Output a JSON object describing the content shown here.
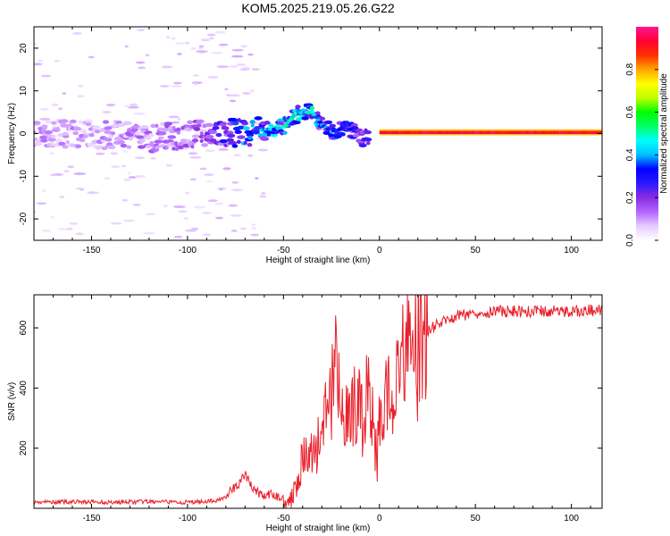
{
  "title": "KOM5.2025.219.05.26.G22",
  "colorbar": {
    "label": "Normalized spectral amplitude",
    "ticks": [
      "0.0",
      "0.2",
      "0.4",
      "0.6",
      "0.8"
    ],
    "tick_values": [
      0.0,
      0.2,
      0.4,
      0.6,
      0.8
    ],
    "range": [
      0,
      1
    ],
    "colormap": [
      "#ffffff",
      "#e6ccff",
      "#b266ff",
      "#8a2be2",
      "#2a1aff",
      "#0000ff",
      "#00bfff",
      "#00ffff",
      "#00ff66",
      "#00ff00",
      "#bfff00",
      "#ffff00",
      "#ffa500",
      "#ff3000",
      "#ff0033",
      "#ff1493"
    ]
  },
  "chart_data": [
    {
      "type": "heatmap",
      "name": "spectrogram",
      "xlabel": "Height of straight line (km)",
      "ylabel": "Frequency (Hz)",
      "xlim": [
        -180,
        116
      ],
      "ylim": [
        -25,
        25
      ],
      "x_ticks": [
        -150,
        -100,
        -50,
        0,
        50,
        100
      ],
      "x_tick_labels": [
        "-150",
        "-100",
        "-50",
        "0",
        "50",
        "100"
      ],
      "y_ticks": [
        -20,
        -10,
        0,
        10,
        20
      ],
      "y_tick_labels": [
        "-20",
        "-10",
        "0",
        "10",
        "20"
      ],
      "ridge": {
        "x": [
          -180,
          -150,
          -120,
          -100,
          -90,
          -80,
          -70,
          -60,
          -55,
          -50,
          -45,
          -40,
          -35,
          -30,
          -25,
          -20,
          -15,
          -10,
          -5,
          0,
          20,
          40,
          60,
          80,
          100,
          116
        ],
        "freq": [
          0,
          0,
          -1,
          -0.5,
          0,
          0,
          0.3,
          1,
          1,
          1.5,
          4,
          5,
          5,
          2,
          0.5,
          1,
          1,
          -1,
          -1,
          0.5,
          0.5,
          0,
          0,
          0,
          0,
          0
        ],
        "amplitude": [
          0.12,
          0.12,
          0.15,
          0.18,
          0.2,
          0.3,
          0.4,
          0.45,
          0.45,
          0.5,
          0.55,
          0.5,
          0.5,
          0.4,
          0.4,
          0.35,
          0.3,
          0.25,
          0.25,
          0.9,
          0.95,
          0.95,
          0.95,
          0.95,
          0.95,
          0.95
        ]
      }
    },
    {
      "type": "line",
      "name": "snr",
      "xlabel": "Height of straight line (km)",
      "ylabel": "SNR (v/v)",
      "xlim": [
        -180,
        116
      ],
      "ylim": [
        0,
        710
      ],
      "x_ticks": [
        -150,
        -100,
        -50,
        0,
        50,
        100
      ],
      "x_tick_labels": [
        "-150",
        "-100",
        "-50",
        "0",
        "50",
        "100"
      ],
      "y_ticks": [
        200,
        400,
        600
      ],
      "y_tick_labels": [
        "200",
        "400",
        "600"
      ],
      "color": "#e8202a",
      "x": [
        -180,
        -160,
        -140,
        -120,
        -100,
        -85,
        -80,
        -75,
        -70,
        -65,
        -60,
        -55,
        -50,
        -46,
        -45,
        -40,
        -35,
        -30,
        -28,
        -27,
        -25,
        -24,
        -22,
        -20,
        -15,
        -10,
        -5,
        -3,
        -2,
        0,
        5,
        10,
        15,
        20,
        25,
        30,
        40,
        50,
        60,
        80,
        100,
        116
      ],
      "y": [
        20,
        22,
        20,
        22,
        20,
        25,
        40,
        70,
        110,
        60,
        40,
        45,
        30,
        25,
        60,
        160,
        180,
        240,
        400,
        420,
        350,
        500,
        460,
        280,
        330,
        380,
        350,
        260,
        180,
        300,
        380,
        470,
        520,
        560,
        590,
        610,
        640,
        650,
        655,
        655,
        655,
        660
      ]
    }
  ]
}
